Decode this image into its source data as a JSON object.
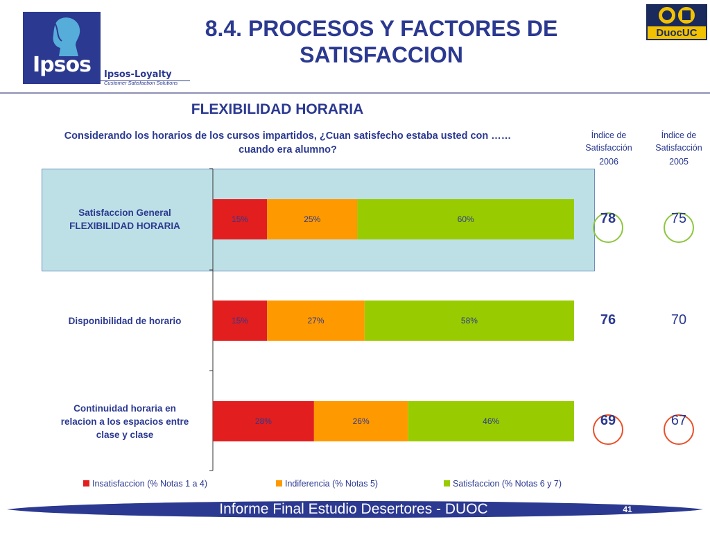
{
  "header": {
    "title_line1": "8.4. PROCESOS Y FACTORES DE",
    "title_line2": "SATISFACCION",
    "ipsos_logo_text": "Ipsos",
    "loyalty_brand": "Ipsos-Loyalty",
    "loyalty_tagline": "Customer Satisfaction Solutions",
    "duoc_logo_text": "DuocUC"
  },
  "section": {
    "subtitle": "FLEXIBILIDAD HORARIA",
    "question_line1": "Considerando los horarios de los cursos impartidos, ¿Cuan satisfecho estaba usted con ……",
    "question_line2": "cuando era alumno?"
  },
  "index_columns": {
    "col_2006": {
      "label_line1": "Índice de",
      "label_line2": "Satisfacción",
      "year": "2006"
    },
    "col_2005": {
      "label_line1": "Índice de",
      "label_line2": "Satisfacción",
      "year": "2005"
    }
  },
  "chart_data": {
    "type": "bar",
    "orientation": "horizontal",
    "stacked": true,
    "categories": [
      [
        "Satisfaccion General",
        "FLEXIBILIDAD HORARIA"
      ],
      [
        "Disponibilidad de horario"
      ],
      [
        "Continuidad horaria en",
        "relacion a los espacios entre",
        "clase y clase"
      ]
    ],
    "series": [
      {
        "name": "Insatisfaccion (% Notas 1 a 4)",
        "color": "#e31e1e",
        "values": [
          15,
          15,
          28
        ],
        "labels": [
          "15%",
          "15%",
          "28%"
        ]
      },
      {
        "name": "Indiferencia (% Notas 5)",
        "color": "#ff9900",
        "values": [
          25,
          27,
          26
        ],
        "labels": [
          "25%",
          "27%",
          "26%"
        ]
      },
      {
        "name": "Satisfaccion (% Notas 6 y 7)",
        "color": "#99cc00",
        "values": [
          60,
          58,
          46
        ],
        "labels": [
          "60%",
          "58%",
          "46%"
        ]
      }
    ],
    "xlim": [
      0,
      100
    ],
    "legend_position": "bottom",
    "highlighted_category": 0,
    "index_2006": [
      "78",
      "76",
      "69"
    ],
    "index_2005": [
      "75",
      "70",
      "67"
    ],
    "index_circled": [
      {
        "color": "#8dc63f",
        "circled_2006": true,
        "circled_2005": true
      },
      {
        "color": null,
        "circled_2006": false,
        "circled_2005": false
      },
      {
        "color": "#e8502a",
        "circled_2006": true,
        "circled_2005": true
      }
    ]
  },
  "footer": {
    "text": "Informe Final Estudio Desertores - DUOC",
    "page_number": "41",
    "bar_color": "#2b3990"
  }
}
